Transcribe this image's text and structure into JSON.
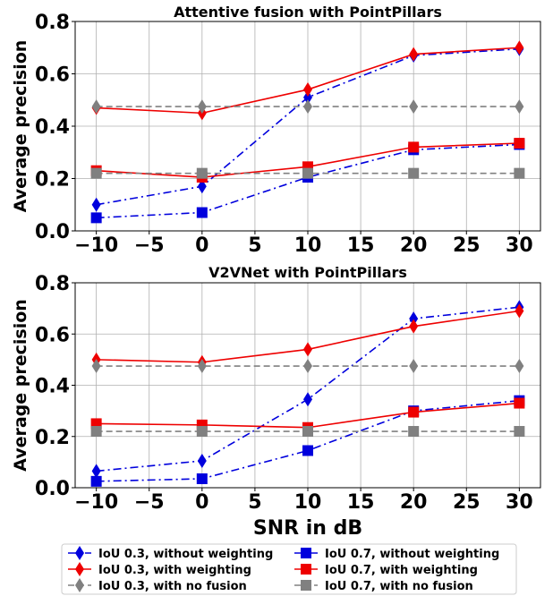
{
  "chart_data": [
    {
      "type": "line",
      "title": "Attentive fusion with PointPillars",
      "xlabel": "",
      "ylabel": "Average precision",
      "x": [
        -10,
        0,
        10,
        20,
        30
      ],
      "xlim": [
        -12,
        32
      ],
      "ylim": [
        0,
        0.8
      ],
      "xticks": [
        -10,
        -5,
        0,
        5,
        10,
        15,
        20,
        25,
        30
      ],
      "yticks": [
        0.0,
        0.2,
        0.4,
        0.6,
        0.8
      ],
      "grid": true,
      "series": [
        {
          "name": "IoU 0.3, without weighting",
          "color": "#0000dd",
          "dash": "dashdot",
          "marker": "diamond",
          "values": [
            0.1,
            0.17,
            0.51,
            0.67,
            0.695
          ]
        },
        {
          "name": "IoU 0.3, with weighting",
          "color": "#ee0000",
          "dash": "solid",
          "marker": "diamond",
          "values": [
            0.47,
            0.45,
            0.54,
            0.675,
            0.7
          ]
        },
        {
          "name": "IoU 0.3, with no fusion",
          "color": "#808080",
          "dash": "dashed",
          "marker": "diamond",
          "values": [
            0.475,
            0.475,
            0.475,
            0.475,
            0.475
          ]
        },
        {
          "name": "IoU 0.7, without weighting",
          "color": "#0000dd",
          "dash": "dashdot",
          "marker": "square",
          "values": [
            0.05,
            0.07,
            0.205,
            0.31,
            0.33
          ]
        },
        {
          "name": "IoU 0.7, with weighting",
          "color": "#ee0000",
          "dash": "solid",
          "marker": "square",
          "values": [
            0.23,
            0.205,
            0.245,
            0.32,
            0.335
          ]
        },
        {
          "name": "IoU 0.7, with no fusion",
          "color": "#808080",
          "dash": "dashed",
          "marker": "square",
          "values": [
            0.22,
            0.22,
            0.22,
            0.22,
            0.22
          ]
        }
      ]
    },
    {
      "type": "line",
      "title": "V2VNet with PointPillars",
      "xlabel": "SNR in dB",
      "ylabel": "Average precision",
      "x": [
        -10,
        0,
        10,
        20,
        30
      ],
      "xlim": [
        -12,
        32
      ],
      "ylim": [
        0,
        0.8
      ],
      "xticks": [
        -10,
        -5,
        0,
        5,
        10,
        15,
        20,
        25,
        30
      ],
      "yticks": [
        0.0,
        0.2,
        0.4,
        0.6,
        0.8
      ],
      "grid": true,
      "series": [
        {
          "name": "IoU 0.3, without weighting",
          "color": "#0000dd",
          "dash": "dashdot",
          "marker": "diamond",
          "values": [
            0.065,
            0.105,
            0.345,
            0.66,
            0.705
          ]
        },
        {
          "name": "IoU 0.3, with weighting",
          "color": "#ee0000",
          "dash": "solid",
          "marker": "diamond",
          "values": [
            0.5,
            0.49,
            0.54,
            0.63,
            0.69
          ]
        },
        {
          "name": "IoU 0.3, with no fusion",
          "color": "#808080",
          "dash": "dashed",
          "marker": "diamond",
          "values": [
            0.475,
            0.475,
            0.475,
            0.475,
            0.475
          ]
        },
        {
          "name": "IoU 0.7, without weighting",
          "color": "#0000dd",
          "dash": "dashdot",
          "marker": "square",
          "values": [
            0.025,
            0.035,
            0.145,
            0.3,
            0.34
          ]
        },
        {
          "name": "IoU 0.7, with weighting",
          "color": "#ee0000",
          "dash": "solid",
          "marker": "square",
          "values": [
            0.25,
            0.245,
            0.235,
            0.295,
            0.33
          ]
        },
        {
          "name": "IoU 0.7, with no fusion",
          "color": "#808080",
          "dash": "dashed",
          "marker": "square",
          "values": [
            0.22,
            0.22,
            0.22,
            0.22,
            0.22
          ]
        }
      ]
    }
  ],
  "legend": {
    "placement": "bottom",
    "order": [
      0,
      3,
      1,
      4,
      2,
      5
    ]
  }
}
